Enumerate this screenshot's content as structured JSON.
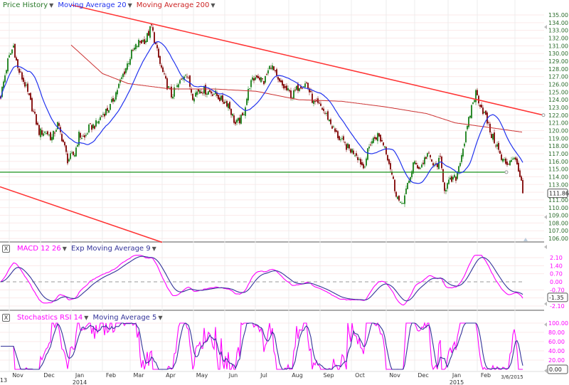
{
  "price_panel": {
    "legend": [
      {
        "label": "Price History",
        "color": "#2a7a2a"
      },
      {
        "label": "Moving Average 20",
        "color": "#2233ee"
      },
      {
        "label": "Moving Average 200",
        "color": "#cc2222"
      }
    ],
    "last_value": "111.86"
  },
  "macd_panel": {
    "close_label": "X",
    "legend": [
      {
        "label": "MACD 12 26",
        "color": "#ff00ff"
      },
      {
        "label": "Exp Moving Average 9",
        "color": "#333399"
      }
    ],
    "last_value": "-1.35"
  },
  "stoch_panel": {
    "close_label": "X",
    "legend": [
      {
        "label": "Stochastics RSI 14",
        "color": "#ff00ff"
      },
      {
        "label": "Moving Average 5",
        "color": "#333399"
      }
    ],
    "last_value": "0.00"
  },
  "chart_data": [
    {
      "type": "candlestick",
      "title": "Price History",
      "ylim": [
        106,
        135
      ],
      "yticks": [
        "135.00",
        "134.00",
        "133.00",
        "132.00",
        "131.00",
        "130.00",
        "129.00",
        "128.00",
        "127.00",
        "126.00",
        "125.00",
        "124.00",
        "123.00",
        "122.00",
        "121.00",
        "120.00",
        "119.00",
        "118.00",
        "117.00",
        "116.00",
        "115.00",
        "114.00",
        "113.00",
        "111.00",
        "110.00",
        "109.00",
        "108.00",
        "107.00",
        "106.00"
      ],
      "xticks": [
        "13",
        "Nov",
        "Dec",
        "Jan",
        "2014",
        "Feb",
        "Mar",
        "Apr",
        "May",
        "Jun",
        "Jul",
        "Aug",
        "Sep",
        "Oct",
        "Nov",
        "Dec",
        "Jan",
        "2015",
        "Feb",
        "3/6/2015"
      ],
      "close_keypoints_by_trading_day": [
        [
          0,
          124.5
        ],
        [
          5,
          129
        ],
        [
          9,
          131
        ],
        [
          12,
          128
        ],
        [
          17,
          126
        ],
        [
          22,
          123
        ],
        [
          27,
          119.8
        ],
        [
          32,
          119.8
        ],
        [
          36,
          119
        ],
        [
          40,
          120.8
        ],
        [
          44,
          118.5
        ],
        [
          47,
          116.2
        ],
        [
          52,
          117
        ],
        [
          55,
          119.4
        ],
        [
          59,
          119
        ],
        [
          62,
          120.3
        ],
        [
          67,
          120.8
        ],
        [
          72,
          122.2
        ],
        [
          77,
          123.1
        ],
        [
          82,
          125.4
        ],
        [
          87,
          127.7
        ],
        [
          92,
          130
        ],
        [
          97,
          131.4
        ],
        [
          102,
          131.8
        ],
        [
          106,
          133.5
        ],
        [
          109,
          131
        ],
        [
          112,
          128.6
        ],
        [
          116,
          126.3
        ],
        [
          120,
          124.5
        ],
        [
          125,
          125.9
        ],
        [
          130,
          127.7
        ],
        [
          135,
          124.5
        ],
        [
          140,
          125.4
        ],
        [
          145,
          125.1
        ],
        [
          150,
          124.9
        ],
        [
          155,
          124
        ],
        [
          160,
          123.5
        ],
        [
          165,
          120.8
        ],
        [
          170,
          121.7
        ],
        [
          175,
          125.9
        ],
        [
          180,
          127.2
        ],
        [
          185,
          126.3
        ],
        [
          190,
          128.6
        ],
        [
          195,
          126.3
        ],
        [
          200,
          125.4
        ],
        [
          205,
          124.5
        ],
        [
          210,
          125.9
        ],
        [
          215,
          126.1
        ],
        [
          220,
          123.5
        ],
        [
          225,
          123.1
        ],
        [
          230,
          121.7
        ],
        [
          235,
          119.8
        ],
        [
          240,
          118.5
        ],
        [
          245,
          117.6
        ],
        [
          250,
          117
        ],
        [
          255,
          115.2
        ],
        [
          260,
          118.5
        ],
        [
          265,
          119.4
        ],
        [
          270,
          118
        ],
        [
          274,
          115.2
        ],
        [
          277,
          112.5
        ],
        [
          281,
          110.2
        ],
        [
          284,
          111.5
        ],
        [
          287,
          113.4
        ],
        [
          290,
          115.7
        ],
        [
          295,
          115.2
        ],
        [
          300,
          117
        ],
        [
          305,
          115.2
        ],
        [
          309,
          116.2
        ],
        [
          312,
          112.5
        ],
        [
          316,
          113.4
        ],
        [
          320,
          113.9
        ],
        [
          324,
          117
        ],
        [
          327,
          119.4
        ],
        [
          331,
          123.1
        ],
        [
          334,
          124.9
        ],
        [
          337,
          123.5
        ],
        [
          341,
          121.7
        ],
        [
          345,
          119.4
        ],
        [
          349,
          118
        ],
        [
          352,
          116.2
        ],
        [
          356,
          115.7
        ],
        [
          360,
          116.6
        ],
        [
          364,
          115.2
        ],
        [
          367,
          111.86
        ]
      ],
      "ma200_keypoints_by_trading_day": [
        [
          50,
          131.1
        ],
        [
          72,
          127.4
        ],
        [
          90,
          126.1
        ],
        [
          120,
          125.4
        ],
        [
          150,
          125.4
        ],
        [
          180,
          125.1
        ],
        [
          210,
          124
        ],
        [
          240,
          123.8
        ],
        [
          270,
          123.1
        ],
        [
          300,
          122.2
        ],
        [
          320,
          121
        ],
        [
          340,
          120.5
        ],
        [
          367,
          119.8
        ]
      ],
      "trendlines": [
        {
          "name": "upper-resistance",
          "from": [
            50,
            136.3
          ],
          "to": [
            382,
            122
          ]
        },
        {
          "name": "lower-channel",
          "from": [
            0,
            112.7
          ],
          "to": [
            114,
            105.5
          ]
        },
        {
          "name": "horizontal-support",
          "from": [
            0,
            114.6
          ],
          "to": [
            356,
            114.6
          ]
        }
      ]
    },
    {
      "type": "line",
      "title": "MACD 12 26 / Exp Moving Average 9",
      "ylim": [
        -2.1,
        2.1
      ],
      "yticks": [
        "2.10",
        "1.40",
        "0.70",
        "0.00",
        "-0.70",
        "-2.10"
      ],
      "zero_line": 0
    },
    {
      "type": "line",
      "title": "Stochastics RSI 14 / Moving Average 5",
      "ylim": [
        0,
        100
      ],
      "yticks": [
        "100.00",
        "80.00",
        "60.00",
        "40.00",
        "20.00"
      ]
    }
  ]
}
